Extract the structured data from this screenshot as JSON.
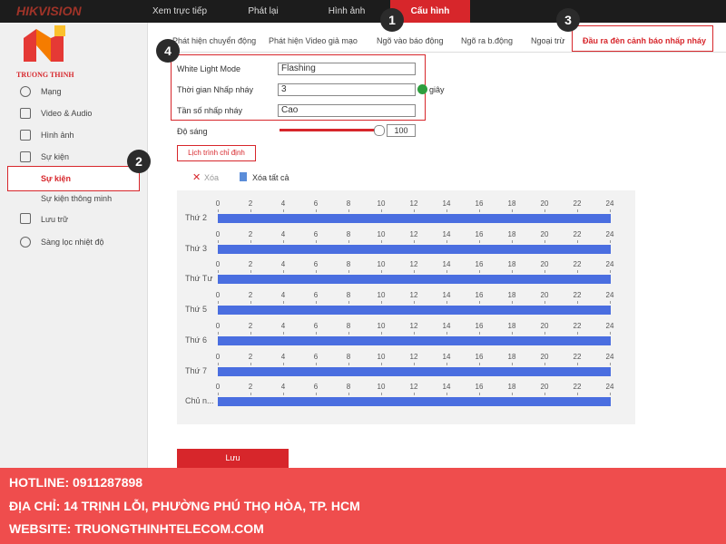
{
  "header": {
    "logo": "HIKVISION",
    "nav": [
      "Xem trực tiếp",
      "Phát lại",
      "Hình ảnh",
      "Cấu hình"
    ]
  },
  "brand": "TRUONG THINH",
  "sidebar": {
    "items": [
      "Mạng",
      "Video & Audio",
      "Hình ảnh",
      "Sự kiện",
      "Sự kiện",
      "Sự kiện thông minh",
      "Lưu trữ",
      "Sàng lọc nhiệt độ"
    ]
  },
  "tabs": [
    "Phát hiện chuyển động",
    "Phát hiện Video giả mạo",
    "Ngõ vào báo động",
    "Ngõ ra b.động",
    "Ngoại trừ",
    "Đầu ra đèn cảnh báo nhấp nháy"
  ],
  "form": {
    "rows": [
      {
        "label": "White Light Mode",
        "value": "Flashing"
      },
      {
        "label": "Thời gian Nhấp nháy",
        "value": "3"
      },
      {
        "label": "Tần số nhấp nháy",
        "value": "Cao"
      }
    ],
    "unit": "giây",
    "brightness": {
      "label": "Độ sáng",
      "value": 100
    }
  },
  "schedule": {
    "button": "Lịch trình chỉ định",
    "delete": "Xóa",
    "delete_all": "Xóa tất cả",
    "hours": [
      0,
      2,
      4,
      6,
      8,
      10,
      12,
      14,
      16,
      18,
      20,
      22,
      24
    ],
    "days": [
      "Thứ 2",
      "Thứ 3",
      "Thứ Tư",
      "Thứ 5",
      "Thứ 6",
      "Thứ 7",
      "Chủ n..."
    ]
  },
  "save": "Lưu",
  "badges": [
    1,
    2,
    3,
    4
  ],
  "footer": {
    "lines": [
      "HOTLINE: 0911287898",
      "ĐỊA CHỈ: 14 TRỊNH LỖI, PHƯỜNG PHÚ THỌ HÒA, TP. HCM",
      "WEBSITE: TRUONGTHINHTELECOM.COM"
    ]
  }
}
